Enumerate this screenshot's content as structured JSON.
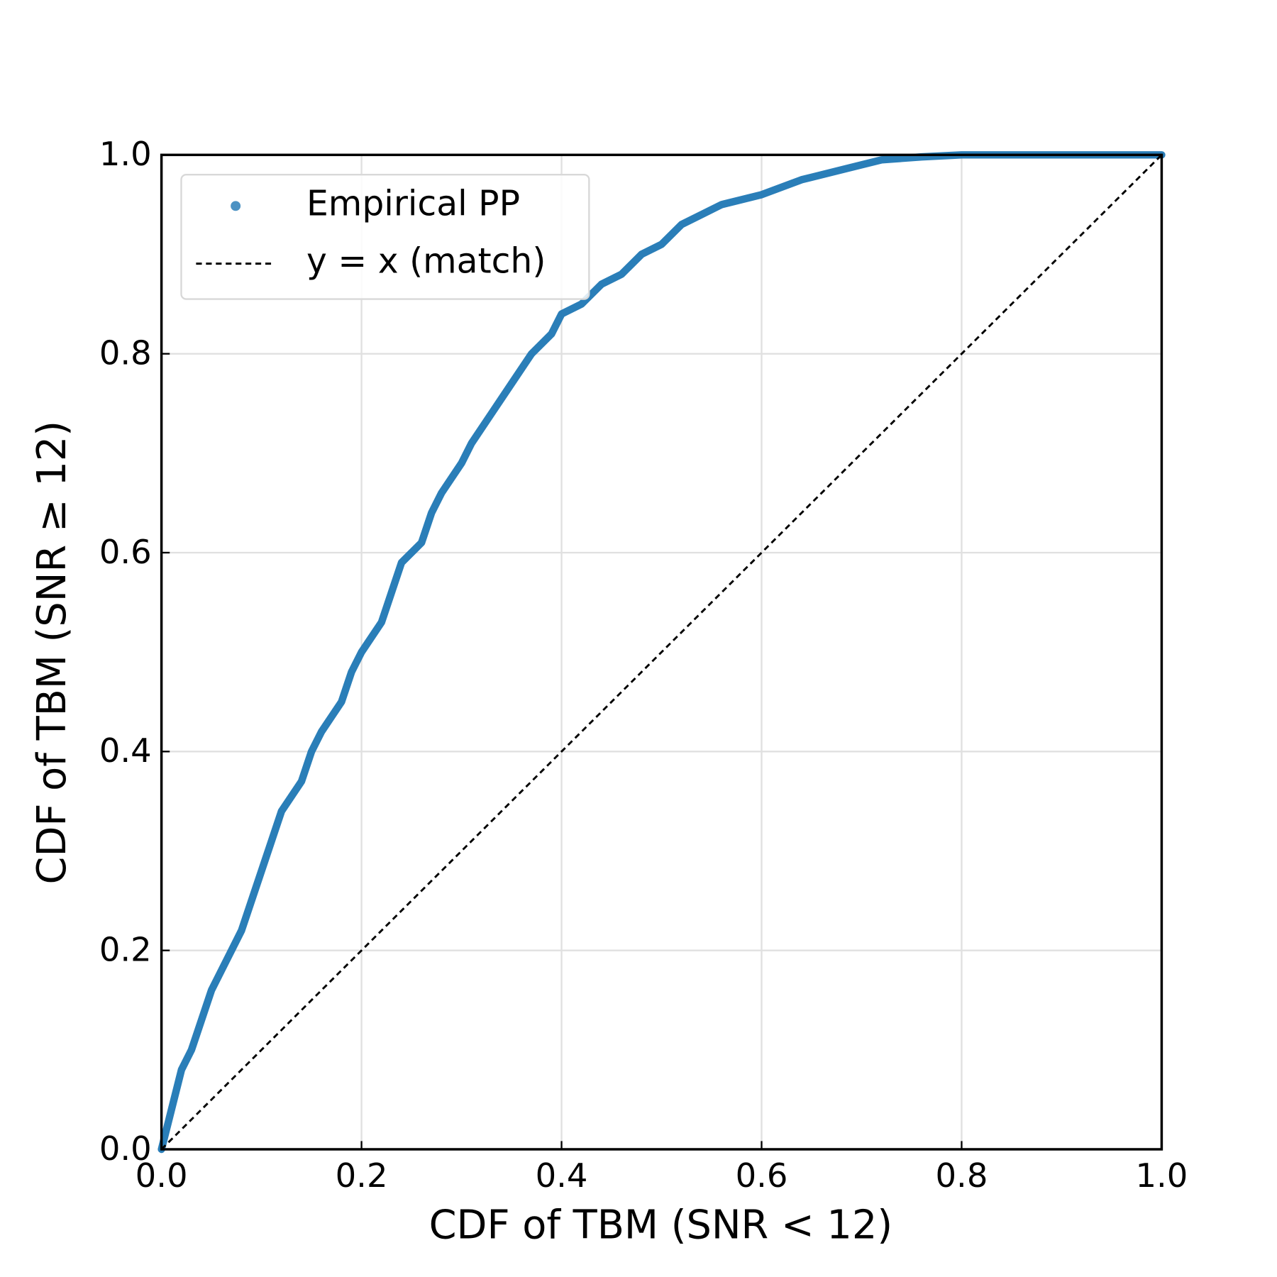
{
  "chart_data": {
    "type": "line",
    "xlabel": "CDF of TBM (SNR < 12)",
    "ylabel": "CDF of TBM (SNR ≥ 12)",
    "xlim": [
      0,
      1
    ],
    "ylim": [
      0,
      1
    ],
    "xticks": [
      {
        "value": 0,
        "label": "0.0"
      },
      0.2,
      0.4,
      0.6,
      0.8,
      {
        "value": 1,
        "label": "1.0"
      }
    ],
    "yticks": [
      {
        "value": 0,
        "label": "0.0"
      },
      0.2,
      0.4,
      0.6,
      0.8,
      {
        "value": 1,
        "label": "1.0"
      }
    ],
    "grid": true,
    "legend": "upper left",
    "series": [
      {
        "name": "Empirical PP",
        "color": "#1f77b4",
        "style": "markers",
        "x": [
          0,
          0.01,
          0.02,
          0.03,
          0.04,
          0.05,
          0.06,
          0.07,
          0.08,
          0.09,
          0.1,
          0.11,
          0.12,
          0.14,
          0.15,
          0.16,
          0.18,
          0.19,
          0.2,
          0.22,
          0.23,
          0.24,
          0.26,
          0.27,
          0.28,
          0.3,
          0.31,
          0.33,
          0.35,
          0.37,
          0.39,
          0.4,
          0.42,
          0.44,
          0.46,
          0.48,
          0.5,
          0.52,
          0.54,
          0.56,
          0.6,
          0.64,
          0.68,
          0.72,
          0.76,
          0.8,
          0.9,
          1
        ],
        "values": [
          0,
          0.04,
          0.08,
          0.1,
          0.13,
          0.16,
          0.18,
          0.2,
          0.22,
          0.25,
          0.28,
          0.31,
          0.34,
          0.37,
          0.4,
          0.42,
          0.45,
          0.48,
          0.5,
          0.53,
          0.56,
          0.59,
          0.61,
          0.64,
          0.66,
          0.69,
          0.71,
          0.74,
          0.77,
          0.8,
          0.82,
          0.84,
          0.85,
          0.87,
          0.88,
          0.9,
          0.91,
          0.93,
          0.94,
          0.95,
          0.96,
          0.975,
          0.985,
          0.995,
          0.998,
          1,
          1,
          1
        ]
      },
      {
        "name": "y = x (match)",
        "color": "#000000",
        "style": "dashed",
        "x": [
          0,
          1
        ],
        "values": [
          0,
          1
        ]
      }
    ]
  }
}
